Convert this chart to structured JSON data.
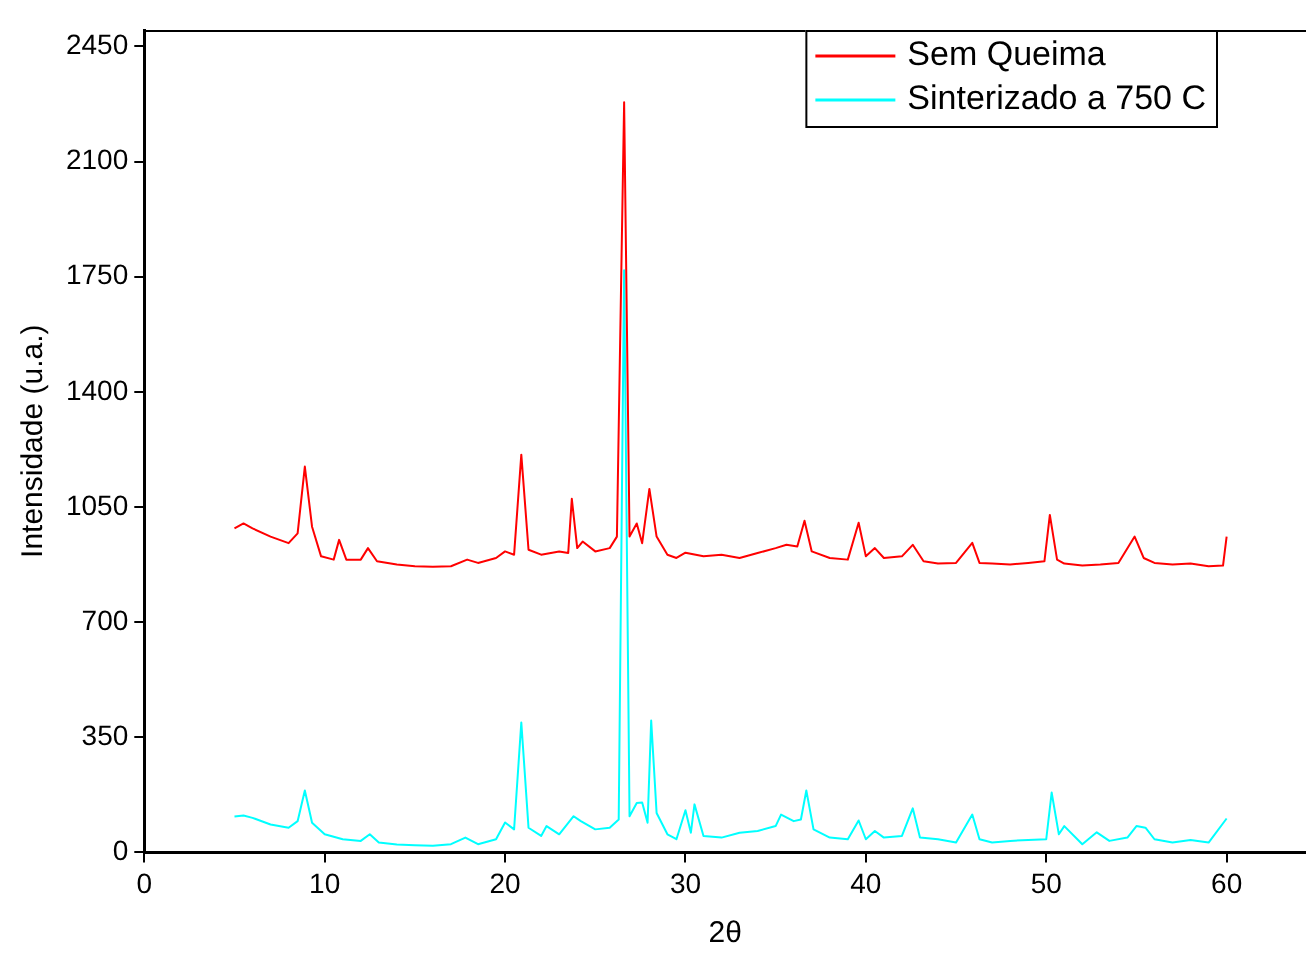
{
  "chart_data": {
    "type": "line",
    "xlabel": "2θ",
    "ylabel": "Intensidade (u.a.)",
    "xlim": [
      0,
      64.4
    ],
    "xticks": [
      0,
      10,
      20,
      30,
      40,
      50,
      60
    ],
    "ylim": [
      0,
      2500
    ],
    "yticks": [
      0,
      350,
      700,
      1050,
      1400,
      1750,
      2100,
      2450
    ],
    "grid": false,
    "legend": "top right",
    "marker": "none",
    "line_style": "solid",
    "series": [
      {
        "name": "Sem Queima",
        "color": "#ff0000",
        "x": [
          5,
          5.5,
          6,
          7,
          7.5,
          8,
          8.5,
          8.9,
          9.3,
          9.8,
          10.5,
          10.8,
          11.2,
          12,
          12.4,
          12.9,
          14,
          15,
          16,
          17,
          17.9,
          18.5,
          19.5,
          20,
          20.5,
          20.9,
          21.3,
          22,
          23,
          23.5,
          23.7,
          24,
          24.3,
          25,
          25.8,
          26.2,
          26.6,
          26.9,
          27.3,
          27.6,
          28.0,
          28.4,
          29,
          29.5,
          30,
          31,
          32,
          33,
          34,
          35,
          35.6,
          36.2,
          36.6,
          37,
          38,
          39,
          39.6,
          40,
          40.5,
          41,
          42,
          42.6,
          43.2,
          44,
          45,
          45.9,
          46.3,
          47,
          48,
          49,
          49.9,
          50.2,
          50.6,
          51,
          52,
          53,
          54,
          54.9,
          55.4,
          56,
          57,
          58,
          59,
          59.8,
          60
        ],
        "values": [
          985,
          1000,
          985,
          960,
          950,
          940,
          970,
          1173,
          990,
          900,
          890,
          950,
          890,
          890,
          925,
          885,
          875,
          870,
          868,
          870,
          890,
          880,
          895,
          915,
          905,
          1209,
          920,
          905,
          915,
          910,
          1075,
          925,
          945,
          915,
          925,
          960,
          2280,
          960,
          1000,
          940,
          1105,
          960,
          905,
          895,
          911,
          900,
          905,
          895,
          910,
          925,
          935,
          930,
          1008,
          915,
          895,
          890,
          1002,
          900,
          925,
          895,
          900,
          935,
          885,
          878,
          880,
          941,
          880,
          878,
          875,
          880,
          885,
          1026,
          890,
          878,
          872,
          875,
          880,
          960,
          895,
          880,
          875,
          878,
          870,
          872,
          960
        ]
      },
      {
        "name": "Sinterizado a 750 C",
        "color": "#00ffff",
        "x": [
          5,
          5.5,
          6,
          7,
          8,
          8.5,
          8.9,
          9.3,
          10,
          11,
          12,
          12.5,
          13,
          14,
          15,
          16,
          17,
          17.8,
          18.5,
          19.5,
          20,
          20.5,
          20.9,
          21.3,
          22,
          22.3,
          23,
          23.8,
          24.2,
          25,
          25.8,
          26.3,
          26.6,
          26.9,
          27.3,
          27.6,
          27.9,
          28.1,
          28.4,
          29,
          29.5,
          30,
          30.3,
          30.5,
          31,
          32,
          33,
          34,
          35,
          35.3,
          36,
          36.4,
          36.7,
          37.1,
          38,
          39,
          39.6,
          40,
          40.5,
          41,
          42,
          42.6,
          43,
          44,
          45,
          45.9,
          46.3,
          47,
          48,
          49,
          50,
          50.3,
          50.7,
          51,
          52,
          52.8,
          53.5,
          54.5,
          55,
          55.5,
          56,
          57,
          58,
          59,
          60
        ],
        "values": [
          109,
          112,
          105,
          85,
          75,
          95,
          188,
          90,
          55,
          40,
          35,
          55,
          30,
          24,
          22,
          20,
          25,
          45,
          25,
          40,
          91,
          70,
          395,
          75,
          50,
          80,
          55,
          110,
          95,
          70,
          75,
          100,
          1770,
          110,
          150,
          152,
          90,
          401,
          120,
          55,
          40,
          128,
          60,
          146,
          50,
          45,
          60,
          65,
          80,
          115,
          95,
          100,
          188,
          70,
          45,
          40,
          97,
          40,
          65,
          45,
          50,
          134,
          45,
          40,
          30,
          115,
          40,
          30,
          35,
          38,
          40,
          182,
          55,
          80,
          25,
          61,
          35,
          45,
          80,
          75,
          40,
          30,
          38,
          30,
          103
        ]
      }
    ]
  }
}
